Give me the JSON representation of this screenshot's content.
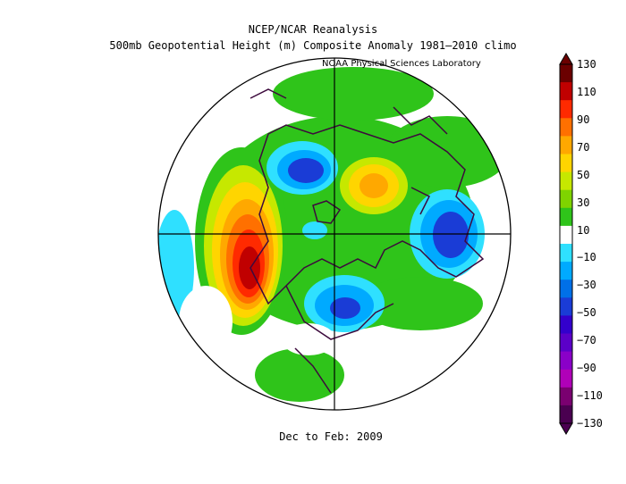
{
  "title": "NCEP/NCAR Reanalysis",
  "subtitle": "500mb Geopotential Height (m) Composite Anomaly 1981–2010 climo",
  "credit": "NOAA Physical Sciences Laboratory",
  "period": "Dec to Feb: 2009",
  "colorbar": {
    "labels": [
      "130",
      "110",
      "90",
      "70",
      "50",
      "30",
      "10",
      "−10",
      "−30",
      "−50",
      "−70",
      "−90",
      "−110",
      "−130"
    ],
    "colors": [
      "#6b0000",
      "#c00000",
      "#ff2a00",
      "#ff7000",
      "#ffa800",
      "#ffd500",
      "#c6e800",
      "#7fd400",
      "#2fc41a",
      "#ffffff",
      "#2fe0ff",
      "#00aaff",
      "#0070e8",
      "#1a3cd6",
      "#3300cc",
      "#5b00c8",
      "#8a00c8",
      "#b000b8",
      "#7a0070",
      "#4a0050"
    ]
  }
}
